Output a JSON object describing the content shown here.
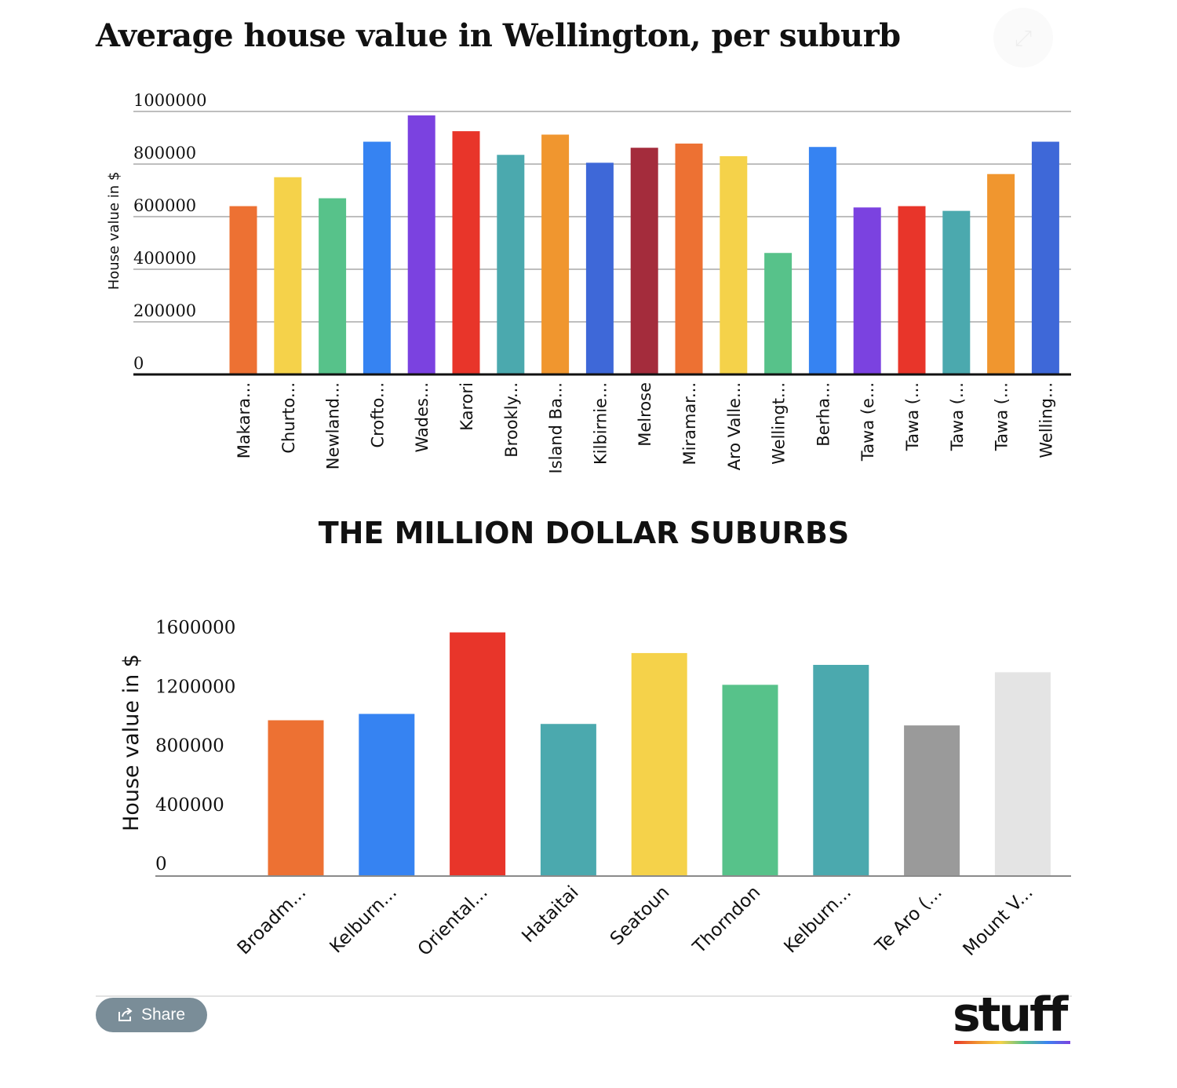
{
  "header": {
    "title": "Average house value in Wellington, per suburb"
  },
  "chart_data": [
    {
      "type": "bar",
      "title": "Average house value in Wellington, per suburb",
      "xlabel": "",
      "ylabel": "House value in $",
      "ylim": [
        0,
        1000000
      ],
      "yticks": [
        "0",
        "200000",
        "400000",
        "600000",
        "800000",
        "1000000"
      ],
      "grid": true,
      "categories": [
        "Makara...",
        "Churto...",
        "Newland...",
        "Crofto...",
        "Wades...",
        "Karori",
        "Brookly...",
        "Island Ba...",
        "Kilbirnie...",
        "Melrose",
        "Miramar...",
        "Aro Valle...",
        "Wellingt...",
        "Berha...",
        "Tawa (e...",
        "Tawa (...",
        "Tawa (...",
        "Tawa (...",
        "Welling..."
      ],
      "values": [
        640000,
        750000,
        670000,
        885000,
        985000,
        925000,
        835000,
        912000,
        805000,
        862000,
        878000,
        830000,
        462000,
        865000,
        635000,
        640000,
        622000,
        762000,
        885000
      ],
      "colors": [
        "#ed7133",
        "#f5d24a",
        "#57c28a",
        "#3683f2",
        "#7b42e0",
        "#e8352a",
        "#4ba9ae",
        "#f0962f",
        "#3e68d8",
        "#a42c3c",
        "#ed7133",
        "#f5d24a",
        "#57c28a",
        "#3683f2",
        "#7b42e0",
        "#e8352a",
        "#4ba9ae",
        "#f0962f",
        "#3e68d8"
      ]
    },
    {
      "type": "bar",
      "title": "THE MILLION DOLLAR SUBURBS",
      "xlabel": "",
      "ylabel": "House value in $",
      "ylim": [
        0,
        1600000
      ],
      "yticks": [
        "0",
        "400000",
        "800000",
        "1200000",
        "1600000"
      ],
      "grid": false,
      "categories": [
        "Broadm...",
        "Kelburn...",
        "Oriental...",
        "Hataitai",
        "Seatoun",
        "Thorndon",
        "Kelburn...",
        "Te Aro (...",
        "Mount V..."
      ],
      "values": [
        1055000,
        1098000,
        1650000,
        1030000,
        1510000,
        1295000,
        1430000,
        1020000,
        1380000
      ],
      "colors": [
        "#ed7133",
        "#3683f2",
        "#e8352a",
        "#4ba9ae",
        "#f5d24a",
        "#57c28a",
        "#4ba9ae",
        "#9a9a9a",
        "#e4e4e4"
      ]
    }
  ],
  "footer": {
    "share_label": "Share",
    "logo_text": "stuff"
  }
}
